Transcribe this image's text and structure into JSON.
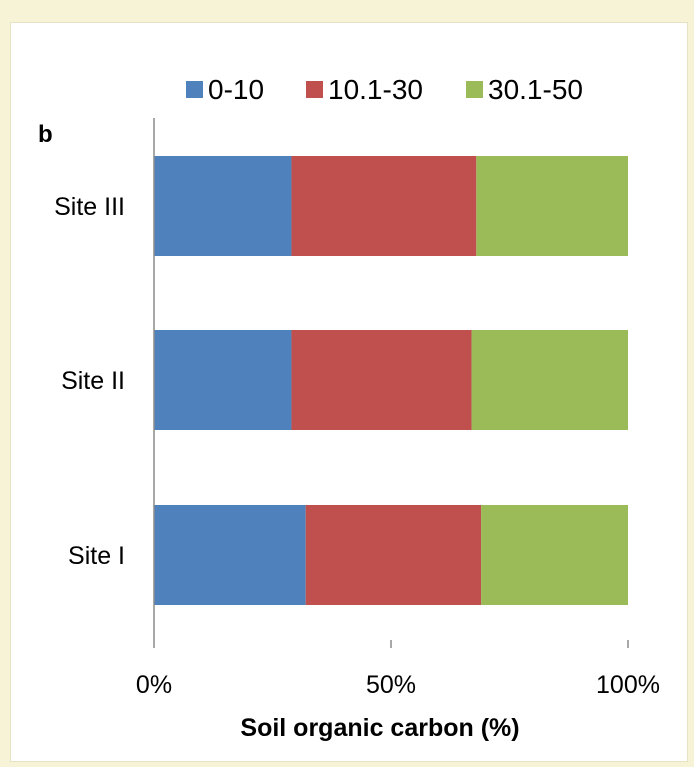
{
  "chart_data": {
    "type": "bar",
    "orientation": "horizontal",
    "stacked": "percent",
    "panel_label": "b",
    "categories": [
      "Site I",
      "Site II",
      "Site III"
    ],
    "series": [
      {
        "name": "0-10",
        "color": "#4f81bd",
        "values": [
          32,
          29,
          29
        ]
      },
      {
        "name": "10.1-30",
        "color": "#c0504d",
        "values": [
          37,
          38,
          39
        ]
      },
      {
        "name": "30.1-50",
        "color": "#9bbb59",
        "values": [
          31,
          33,
          32
        ]
      }
    ],
    "xlabel": "Soil organic carbon (%)",
    "ylabel": "",
    "xlim": [
      0,
      100
    ],
    "xticks": [
      "0%",
      "50%",
      "100%"
    ],
    "grid": false,
    "legend_position": "top"
  }
}
